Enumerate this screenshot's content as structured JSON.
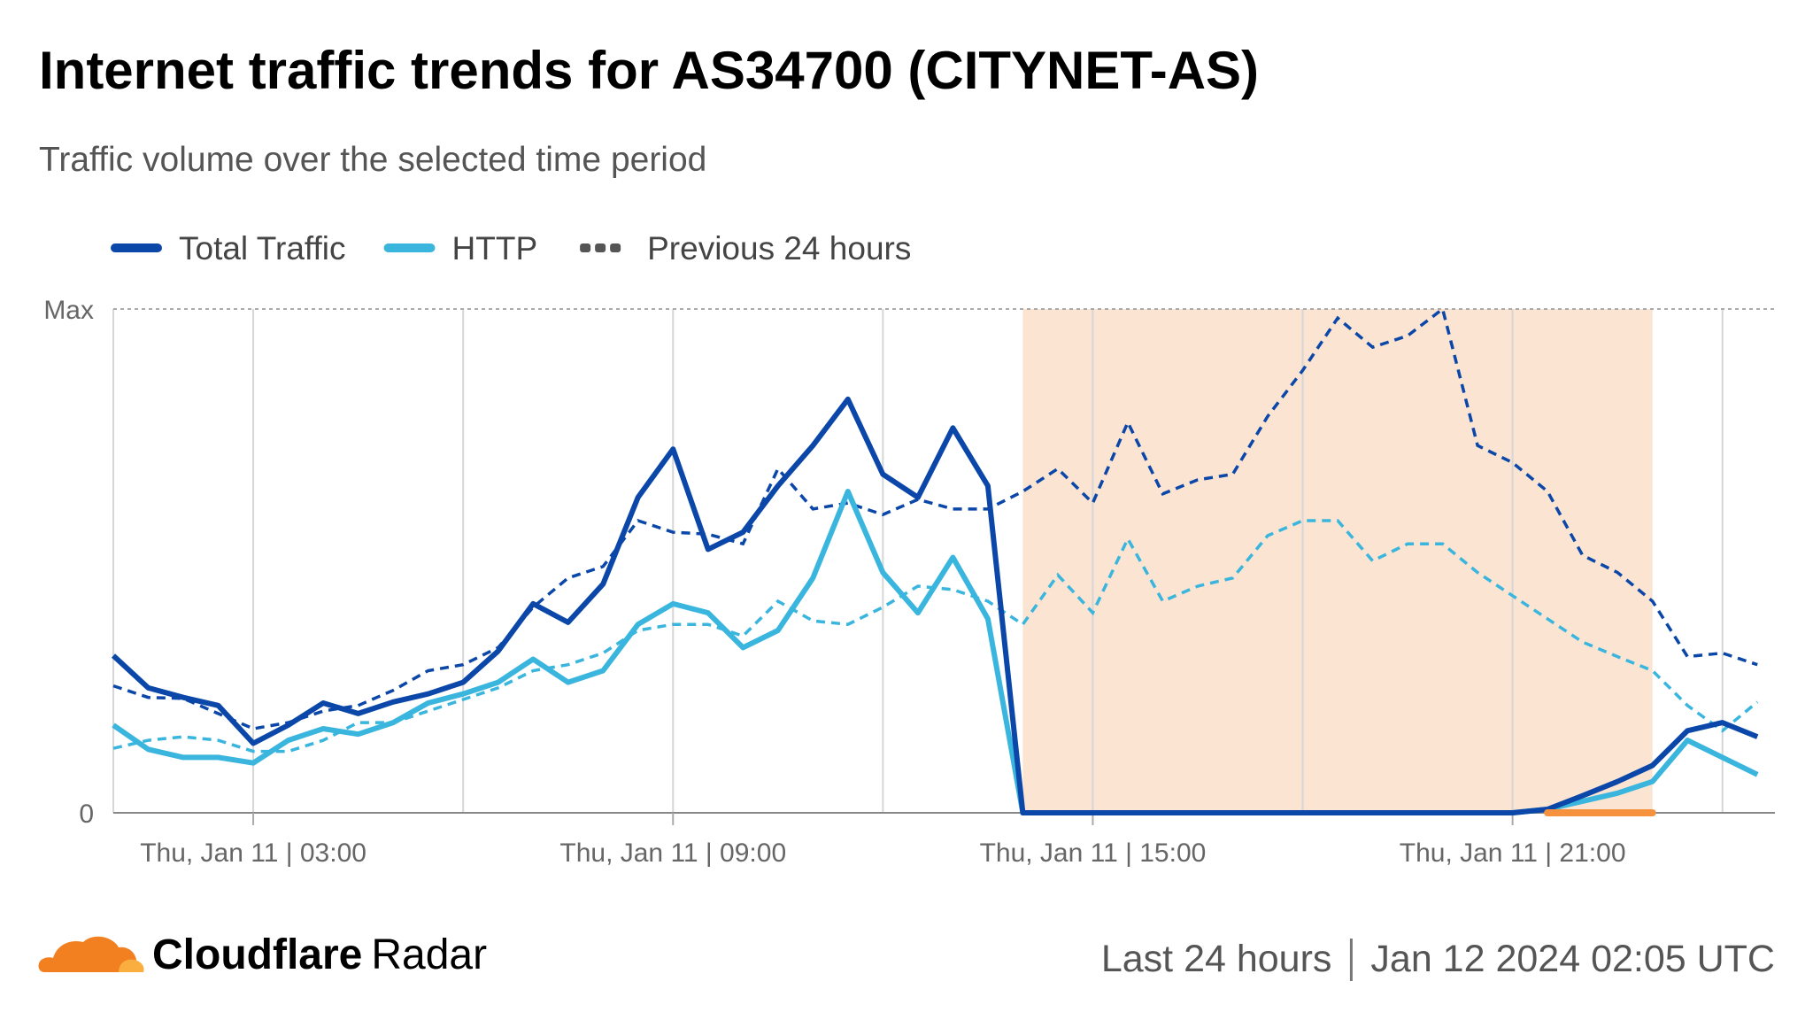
{
  "chart_data": {
    "type": "line",
    "title": "Internet traffic trends for AS34700 (CITYNET-AS)",
    "subtitle": "Traffic volume over the selected time period",
    "x": [
      1,
      1.5,
      2,
      2.5,
      3,
      3.5,
      4,
      4.5,
      5,
      5.5,
      6,
      6.5,
      7,
      7.5,
      8,
      8.5,
      9,
      9.5,
      10,
      10.5,
      11,
      11.5,
      12,
      12.5,
      13,
      13.5,
      14,
      14.5,
      15,
      15.5,
      16,
      16.5,
      17,
      17.5,
      18,
      18.5,
      19,
      19.5,
      20,
      20.5,
      21,
      21.5,
      22,
      22.5,
      23,
      23.5,
      24,
      24.5
    ],
    "xlim": [
      1,
      24.75
    ],
    "xticks": [
      {
        "value": 3,
        "label": "Thu, Jan 11 | 03:00"
      },
      {
        "value": 9,
        "label": "Thu, Jan 11 | 09:00"
      },
      {
        "value": 15,
        "label": "Thu, Jan 11 | 15:00"
      },
      {
        "value": 21,
        "label": "Thu, Jan 11 | 21:00"
      }
    ],
    "xgrid": [
      3,
      6,
      9,
      12,
      15,
      18,
      21,
      24
    ],
    "ylim": [
      0,
      100
    ],
    "yticks": [
      0,
      {
        "value": 100,
        "label": "Max"
      }
    ],
    "highlight": {
      "range": [
        14,
        23
      ],
      "color": "#fbe4d2"
    },
    "outage": {
      "range": [
        21.5,
        23
      ],
      "color": "#f6913e"
    },
    "previous_legend": "Previous 24 hours",
    "series": [
      {
        "name": "Total Traffic",
        "color": "#0b47a8",
        "values": [
          31.2,
          24.8,
          22.9,
          21.3,
          13.8,
          17.4,
          21.8,
          19.7,
          22.0,
          23.6,
          25.9,
          32.1,
          41.5,
          37.8,
          45.4,
          62.6,
          72.2,
          52.3,
          55.7,
          64.9,
          72.9,
          82.1,
          67.2,
          62.6,
          76.4,
          64.9,
          0,
          0,
          0,
          0,
          0,
          0,
          0,
          0,
          0,
          0,
          0,
          0,
          0,
          0,
          0,
          0.7,
          3.4,
          6.2,
          9.4,
          16.3,
          17.9,
          15.1
        ],
        "previous_values": [
          25.2,
          22.9,
          22.7,
          19.7,
          16.7,
          17.9,
          20.2,
          21.3,
          24.3,
          28.2,
          29.4,
          32.8,
          40.8,
          46.6,
          48.9,
          58.0,
          55.7,
          55.3,
          53.4,
          68.3,
          60.3,
          61.5,
          59.2,
          62.2,
          60.3,
          60.3,
          63.8,
          68.3,
          61.5,
          77.5,
          63.3,
          66.1,
          67.2,
          78.7,
          87.8,
          98.2,
          92.4,
          94.7,
          100,
          72.9,
          69.5,
          63.8,
          51.1,
          47.7,
          42.0,
          31.0,
          31.7,
          29.4
        ]
      },
      {
        "name": "HTTP",
        "color": "#3ab6de",
        "values": [
          17.4,
          12.6,
          11.0,
          11.0,
          9.9,
          14.4,
          16.7,
          15.6,
          17.9,
          21.8,
          23.6,
          25.9,
          30.5,
          25.9,
          28.2,
          37.4,
          41.5,
          39.7,
          32.8,
          36.2,
          46.6,
          63.8,
          47.7,
          39.7,
          50.7,
          38.5,
          0,
          0,
          0,
          0,
          0,
          0,
          0,
          0,
          0,
          0,
          0,
          0,
          0,
          0,
          0,
          0.7,
          2.3,
          3.9,
          6.2,
          14.4,
          11.0,
          7.6
        ],
        "previous_values": [
          12.8,
          14.4,
          15.1,
          14.4,
          12.2,
          12.2,
          14.4,
          17.9,
          17.9,
          20.2,
          22.5,
          24.8,
          28.2,
          29.4,
          31.7,
          36.2,
          37.4,
          37.4,
          35.1,
          42.0,
          38.1,
          37.4,
          40.8,
          45.0,
          44.3,
          42.0,
          37.4,
          47.2,
          39.7,
          54.4,
          42.0,
          45.0,
          46.6,
          55.0,
          58.0,
          58.0,
          50.0,
          53.4,
          53.4,
          47.7,
          43.1,
          38.5,
          33.9,
          31.0,
          28.2,
          21.3,
          16.3,
          22.0
        ]
      }
    ]
  },
  "footer": {
    "brand": "Cloudflare",
    "product": "Radar",
    "period": "Last 24 hours",
    "timestamp": "Jan 12 2024 02:05 UTC"
  }
}
